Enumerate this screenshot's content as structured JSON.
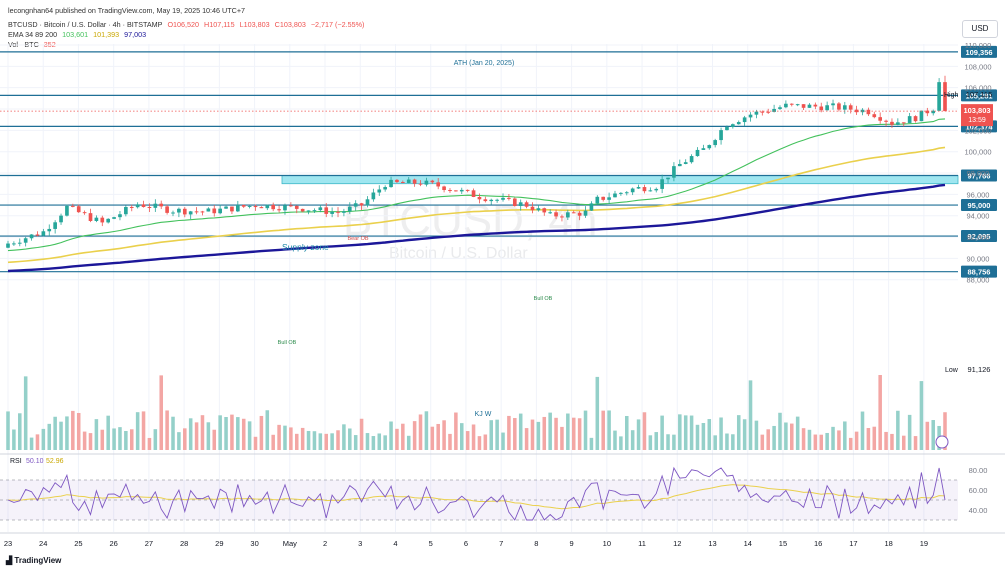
{
  "header": {
    "publish_line": "lecongnhan64 published on TradingView.com, May 19, 2025 10:46 UTC+7",
    "symbol_line": "BTCUSD · Bitcoin / U.S. Dollar · 4h · BITSTAMP",
    "ohlc": {
      "o": "O106,520",
      "h": "H107,115",
      "l": "L103,803",
      "c": "C103,803",
      "chg": "−2,717 (−2.55%)"
    },
    "ema_line": {
      "label": "EMA 34 89 200",
      "v1": "103,601",
      "v2": "101,393",
      "v3": "97,003"
    },
    "vol_line": {
      "label": "Vol · BTC",
      "value": "352"
    }
  },
  "currency_button": "USD",
  "watermark": {
    "main": "BTCUSD, 4h",
    "sub": "Bitcoin / U.S. Dollar"
  },
  "footer": {
    "brand": "TradingView"
  },
  "colors": {
    "up": "#26a69a",
    "down": "#ef5350",
    "level": "#1e6f96",
    "ema34": "#43c15c",
    "ema89": "#ead04c",
    "ema200": "#1c1799",
    "supply": "#9fe6f0",
    "rsi": "#7e57c2",
    "rsi_ma": "#ead04c",
    "vol_up": "#94d0c9",
    "vol_down": "#f3a6a4"
  },
  "chart_data": {
    "type": "candlestick",
    "symbol": "BTCUSD",
    "timeframe": "4h",
    "ylim": [
      87000,
      111000
    ],
    "price_ticks": [
      "110,000",
      "108,000",
      "106,000",
      "104,000",
      "102,000",
      "100,000",
      "98,000",
      "96,000",
      "94,000",
      "92,000",
      "90,000",
      "88,000"
    ],
    "x_ticks": [
      "23",
      "24",
      "25",
      "26",
      "27",
      "28",
      "29",
      "30",
      "May",
      "2",
      "3",
      "4",
      "5",
      "6",
      "7",
      "8",
      "9",
      "10",
      "11",
      "12",
      "13",
      "14",
      "15",
      "16",
      "17",
      "18",
      "19"
    ],
    "horizontal_levels": [
      {
        "value": 109356,
        "label": "109,356"
      },
      {
        "value": 105281,
        "label": "105,281"
      },
      {
        "value": 102374,
        "label": "102,374"
      },
      {
        "value": 97766,
        "label": "97,766"
      },
      {
        "value": 95000,
        "label": "95,000"
      },
      {
        "value": 92095,
        "label": "92,095"
      },
      {
        "value": 88756,
        "label": "88,756"
      }
    ],
    "price_labels": {
      "high": {
        "text": "High",
        "value": "107,115"
      },
      "low": {
        "text": "Low",
        "value": "91,126"
      },
      "last": {
        "value": "103,803",
        "countdown": "13:59"
      }
    },
    "annotations": [
      {
        "text": "ATH (Jan 20, 2025)"
      },
      {
        "text": "Supply zone"
      },
      {
        "text": "Bear OB"
      },
      {
        "text": "Bull OB"
      },
      {
        "text": "Bull OB"
      },
      {
        "text": "KJ W"
      }
    ],
    "supply_zone": {
      "from": 97000,
      "to": 97766
    },
    "ema_legend": [
      "EMA 34",
      "EMA 89",
      "EMA 200"
    ],
    "rsi": {
      "label": "RSI",
      "value": "50.10",
      "ma": "52.96",
      "ticks": [
        "80.00",
        "60.00",
        "40.00"
      ],
      "ylim": [
        20,
        90
      ]
    }
  }
}
